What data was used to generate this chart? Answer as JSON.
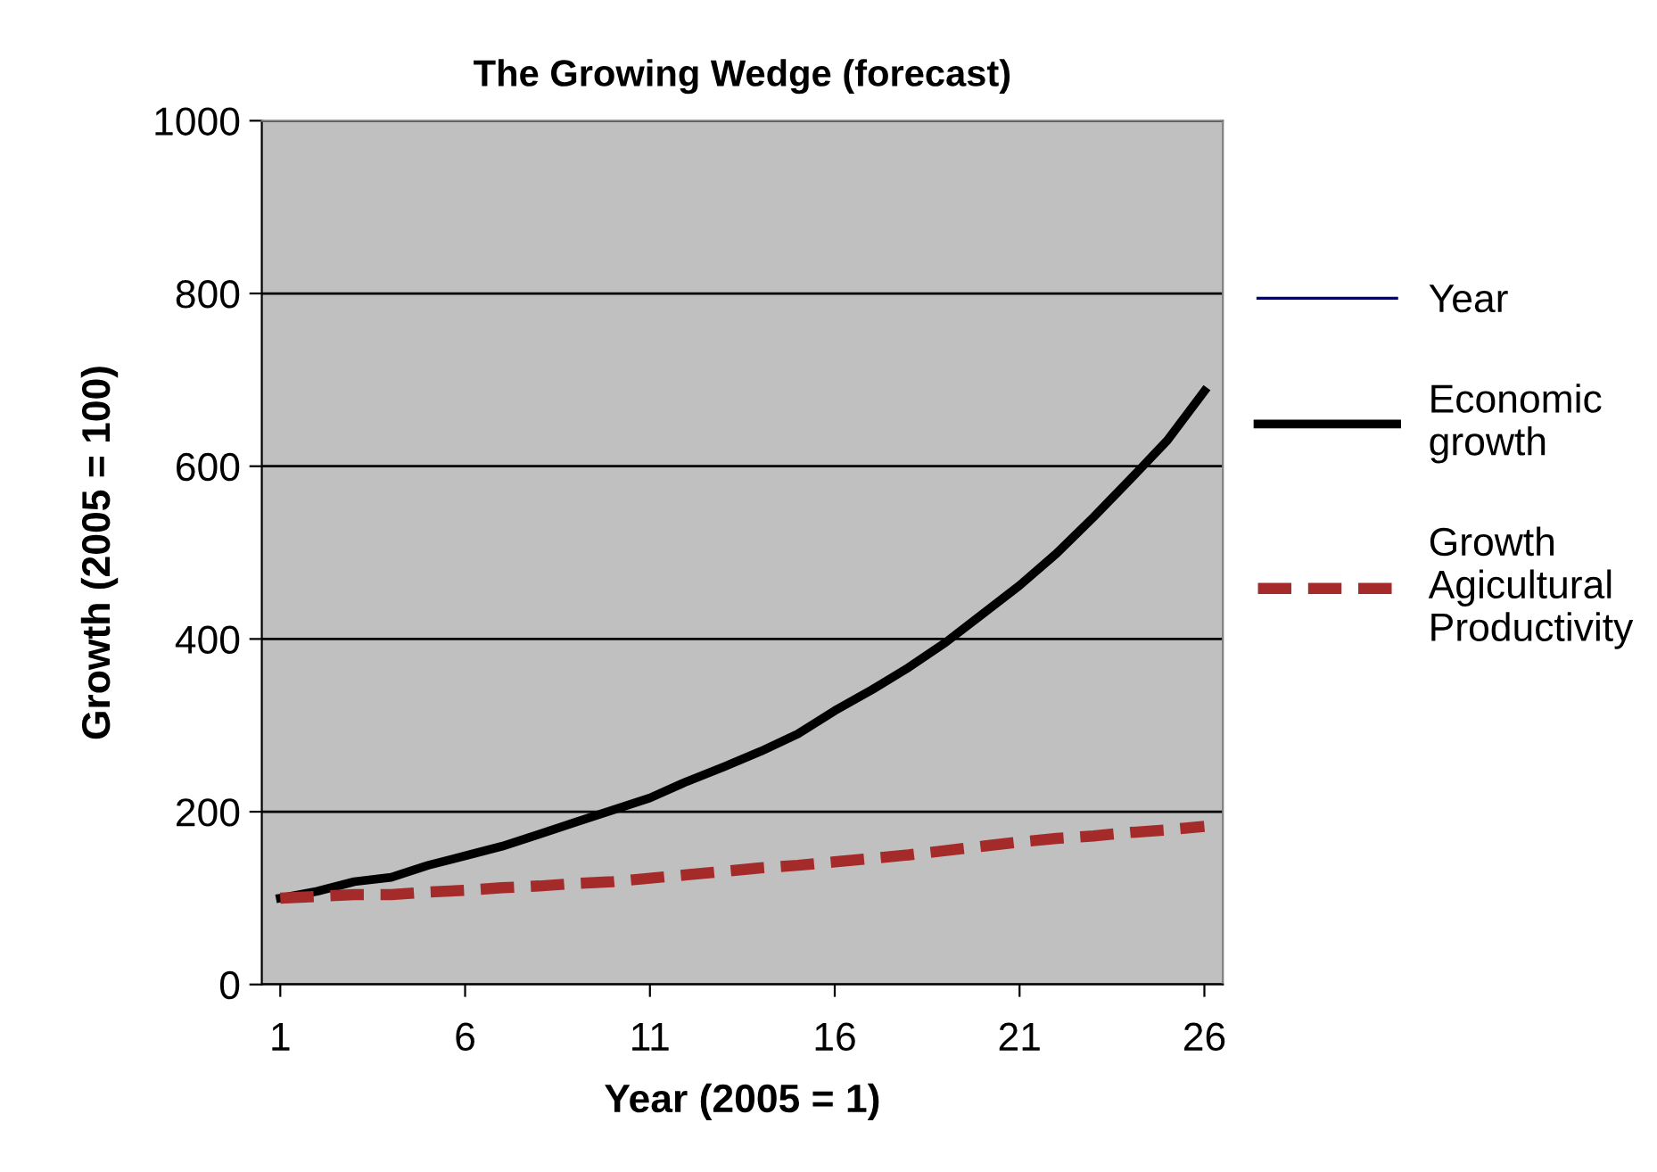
{
  "chart_data": {
    "type": "line",
    "title": "The Growing Wedge (forecast)",
    "xlabel": "Year (2005 = 1)",
    "ylabel": "Growth (2005 = 100)",
    "x": [
      1,
      2,
      3,
      4,
      5,
      6,
      7,
      8,
      9,
      10,
      11,
      12,
      13,
      14,
      15,
      16,
      17,
      18,
      19,
      20,
      21,
      22,
      23,
      24,
      25,
      26
    ],
    "xlim": [
      0.5,
      26.5
    ],
    "xticks": [
      1,
      6,
      11,
      16,
      21,
      26
    ],
    "ylim": [
      0,
      1000
    ],
    "yticks": [
      0,
      200,
      400,
      600,
      800,
      1000
    ],
    "grid": "y",
    "legend": "right",
    "marker": "none",
    "series": [
      {
        "name": "Year",
        "color": "#000080",
        "line_style": "solid",
        "values": [
          null,
          null,
          null,
          null,
          null,
          null,
          null,
          null,
          null,
          null,
          null,
          null,
          null,
          null,
          null,
          null,
          null,
          null,
          null,
          null,
          null,
          null,
          null,
          null,
          null,
          null
        ]
      },
      {
        "name": "Economic\ngrowth",
        "color": "#000000",
        "line_style": "solid",
        "values": [
          100,
          108,
          119,
          124,
          138,
          149,
          160,
          174,
          188,
          202,
          216,
          235,
          252,
          270,
          290,
          317,
          341,
          367,
          396,
          429,
          462,
          499,
          541,
          585,
          630,
          687
        ]
      },
      {
        "name": "Growth\nAgicultural\nProductivity",
        "color": "#a52a2a",
        "line_style": "dashed",
        "values": [
          100,
          102,
          104,
          104,
          107,
          109,
          112,
          114,
          117,
          119,
          123,
          127,
          131,
          135,
          138,
          142,
          146,
          150,
          155,
          160,
          165,
          169,
          172,
          176,
          179,
          183
        ]
      }
    ]
  }
}
